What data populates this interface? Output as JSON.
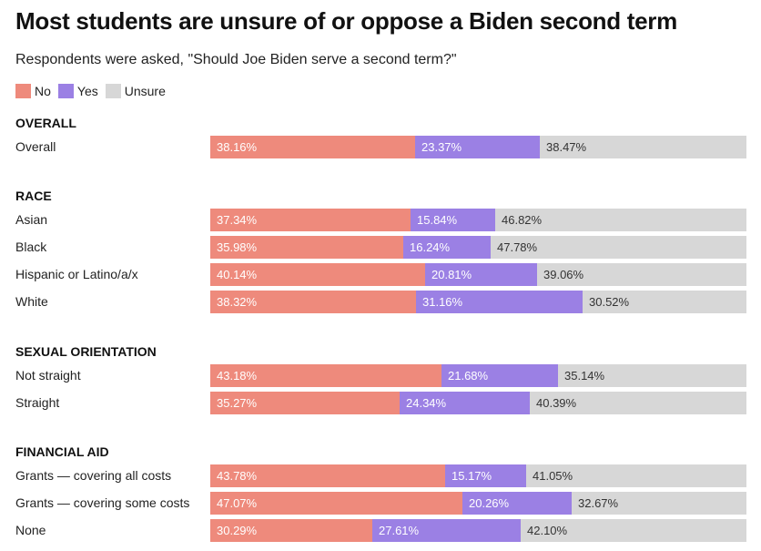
{
  "chart_data": {
    "type": "bar",
    "orientation": "horizontal",
    "stacked": "100%",
    "title": "Most students are unsure of or oppose a Biden second term",
    "subtitle": "Respondents were asked, \"Should Joe Biden serve a second term?\"",
    "xlim": [
      0,
      100
    ],
    "legend": [
      {
        "name": "No",
        "color": "#ee8a7c"
      },
      {
        "name": "Yes",
        "color": "#9b80e4"
      },
      {
        "name": "Unsure",
        "color": "#d7d7d7"
      }
    ],
    "series_names": [
      "No",
      "Yes",
      "Unsure"
    ],
    "groups": [
      {
        "heading": "OVERALL",
        "rows": [
          {
            "label": "Overall",
            "values": [
              38.16,
              23.37,
              38.47
            ],
            "display": [
              "38.16%",
              "23.37%",
              "38.47%"
            ]
          }
        ]
      },
      {
        "heading": "RACE",
        "rows": [
          {
            "label": "Asian",
            "values": [
              37.34,
              15.84,
              46.82
            ],
            "display": [
              "37.34%",
              "15.84%",
              "46.82%"
            ]
          },
          {
            "label": "Black",
            "values": [
              35.98,
              16.24,
              47.78
            ],
            "display": [
              "35.98%",
              "16.24%",
              "47.78%"
            ]
          },
          {
            "label": "Hispanic or Latino/a/x",
            "values": [
              40.14,
              20.81,
              39.06
            ],
            "display": [
              "40.14%",
              "20.81%",
              "39.06%"
            ]
          },
          {
            "label": "White",
            "values": [
              38.32,
              31.16,
              30.52
            ],
            "display": [
              "38.32%",
              "31.16%",
              "30.52%"
            ]
          }
        ]
      },
      {
        "heading": "SEXUAL ORIENTATION",
        "rows": [
          {
            "label": "Not straight",
            "values": [
              43.18,
              21.68,
              35.14
            ],
            "display": [
              "43.18%",
              "21.68%",
              "35.14%"
            ]
          },
          {
            "label": "Straight",
            "values": [
              35.27,
              24.34,
              40.39
            ],
            "display": [
              "35.27%",
              "24.34%",
              "40.39%"
            ]
          }
        ]
      },
      {
        "heading": "FINANCIAL AID",
        "rows": [
          {
            "label": "Grants — covering all costs",
            "values": [
              43.78,
              15.17,
              41.05
            ],
            "display": [
              "43.78%",
              "15.17%",
              "41.05%"
            ]
          },
          {
            "label": "Grants — covering some costs",
            "values": [
              47.07,
              20.26,
              32.67
            ],
            "display": [
              "47.07%",
              "20.26%",
              "32.67%"
            ]
          },
          {
            "label": "None",
            "values": [
              30.29,
              27.61,
              42.1
            ],
            "display": [
              "30.29%",
              "27.61%",
              "42.10%"
            ]
          }
        ]
      }
    ]
  }
}
